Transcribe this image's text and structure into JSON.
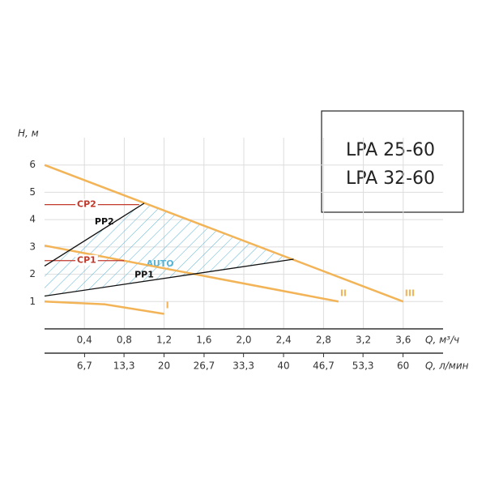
{
  "chart_data": {
    "type": "line",
    "y_label": "H, м",
    "x_label": "Q, м³/ч",
    "x2_label": "Q, л/мин",
    "legend_lines": [
      "LPA 25-60",
      "LPA 32-60"
    ],
    "xlim": [
      0,
      4.0
    ],
    "ylim": [
      0,
      7
    ],
    "x2lim": [
      0,
      66.7
    ],
    "xticks": [
      {
        "value": 0.4,
        "label": "0,4"
      },
      {
        "value": 0.8,
        "label": "0,8"
      },
      {
        "value": 1.2,
        "label": "1,2"
      },
      {
        "value": 1.6,
        "label": "1,6"
      },
      {
        "value": 2.0,
        "label": "2,0"
      },
      {
        "value": 2.4,
        "label": "2,4"
      },
      {
        "value": 2.8,
        "label": "2,8"
      },
      {
        "value": 3.2,
        "label": "3,2"
      },
      {
        "value": 3.6,
        "label": "3,6"
      }
    ],
    "x2ticks": [
      {
        "value": 6.7,
        "label": "6,7"
      },
      {
        "value": 13.3,
        "label": "13,3"
      },
      20,
      {
        "value": 26.7,
        "label": "26,7"
      },
      {
        "value": 33.3,
        "label": "33,3"
      },
      40,
      {
        "value": 46.7,
        "label": "46,7"
      },
      {
        "value": 53.3,
        "label": "53,3"
      },
      60
    ],
    "yticks": [
      1,
      2,
      3,
      4,
      5,
      6
    ],
    "grid": true,
    "region": {
      "label": "AUTO",
      "color": "#5ab4d6",
      "x": [
        0,
        1.0,
        2.5,
        0
      ],
      "y": [
        2.3,
        4.6,
        2.55,
        1.2
      ]
    },
    "series": [
      {
        "name": "III",
        "color": "#f2b457",
        "x": [
          0,
          3.6
        ],
        "values": [
          6,
          1
        ]
      },
      {
        "name": "II",
        "color": "#f2b457",
        "x": [
          0,
          2.95
        ],
        "values": [
          3.05,
          1
        ]
      },
      {
        "name": "I",
        "color": "#f2b457",
        "x": [
          0,
          0.6,
          1.2
        ],
        "values": [
          1.0,
          0.9,
          0.55
        ]
      },
      {
        "name": "CP2",
        "color": "#c0392b",
        "x": [
          0,
          0.95
        ],
        "values": [
          4.55,
          4.55
        ]
      },
      {
        "name": "CP1",
        "color": "#c0392b",
        "x": [
          0,
          0.8
        ],
        "values": [
          2.5,
          2.5
        ]
      },
      {
        "name": "PP2",
        "color": "#111111",
        "x": [
          0,
          1.0
        ],
        "values": [
          2.3,
          4.6
        ]
      },
      {
        "name": "PP1",
        "color": "#111111",
        "x": [
          0,
          2.5
        ],
        "values": [
          1.2,
          2.55
        ]
      }
    ]
  }
}
